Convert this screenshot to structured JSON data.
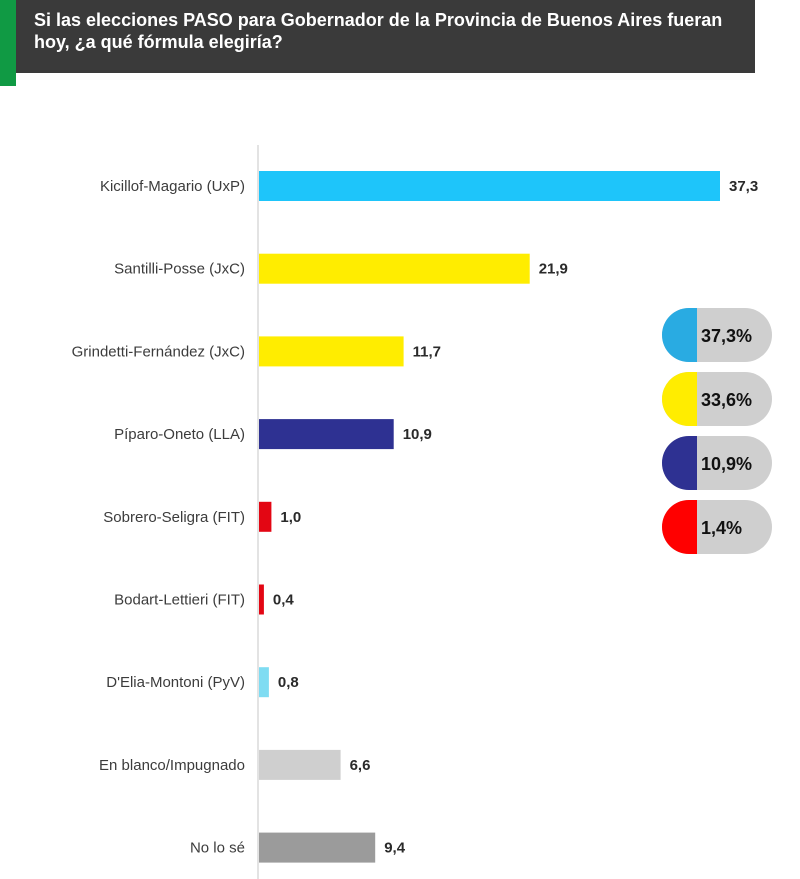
{
  "header": {
    "title": "Si las elecciones PASO para Gobernador de la Provincia de Buenos Aires fueran hoy, ¿a qué fórmula elegiría?"
  },
  "chart_data": {
    "type": "bar",
    "orientation": "horizontal",
    "title": "Si las elecciones PASO para Gobernador de la Provincia de Buenos Aires fueran hoy, ¿a qué fórmula elegiría?",
    "categories": [
      "Kicillof-Magario (UxP)",
      "Santilli-Posse (JxC)",
      "Grindetti-Fernández (JxC)",
      "Píparo-Oneto (LLA)",
      "Sobrero-Seligra (FIT)",
      "Bodart-Lettieri (FIT)",
      "D'Elia-Montoni (PyV)",
      "En blanco/Impugnado",
      "No lo sé"
    ],
    "values": [
      37.3,
      21.9,
      11.7,
      10.9,
      1.0,
      0.4,
      0.8,
      6.6,
      9.4
    ],
    "value_labels": [
      "37,3",
      "21,9",
      "11,7",
      "10,9",
      "1,0",
      "0,4",
      "0,8",
      "6,6",
      "9,4"
    ],
    "colors": [
      "#1ec5fa",
      "#ffed00",
      "#ffed00",
      "#2e3192",
      "#e30613",
      "#e30613",
      "#7fdcf2",
      "#cfcfcf",
      "#9b9b9b"
    ],
    "xlim": [
      0,
      37.3
    ],
    "xlabel": "",
    "ylabel": "",
    "grid": false
  },
  "summary_pills": [
    {
      "label": "37,3%",
      "value": 37.3,
      "color": "#29abe2"
    },
    {
      "label": "33,6%",
      "value": 33.6,
      "color": "#ffed00"
    },
    {
      "label": "10,9%",
      "value": 10.9,
      "color": "#2e3192"
    },
    {
      "label": "1,4%",
      "value": 1.4,
      "color": "#ff0000"
    }
  ],
  "pill_track_color": "#cfcfcf"
}
